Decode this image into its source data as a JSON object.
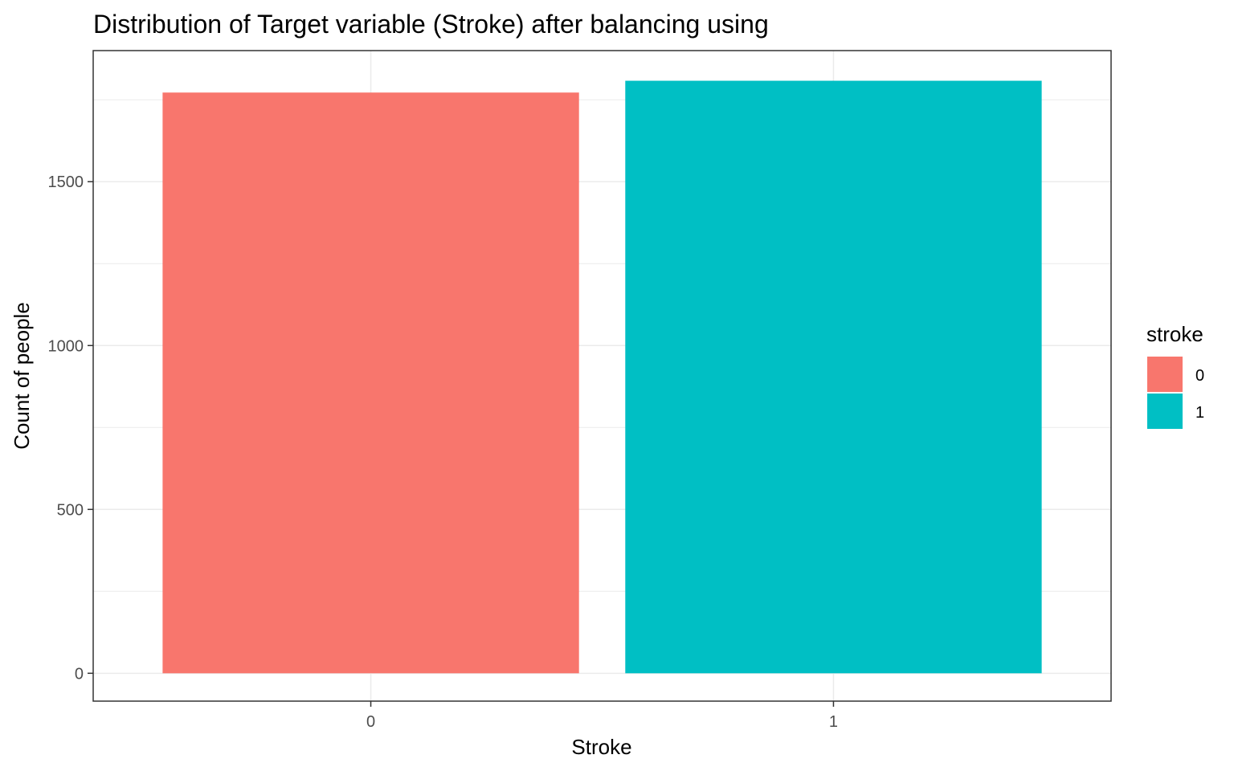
{
  "chart_data": {
    "type": "bar",
    "title": "Distribution of Target variable (Stroke) after balancing using",
    "xlabel": "Stroke",
    "ylabel": "Count of people",
    "categories": [
      "0",
      "1"
    ],
    "values": [
      1772,
      1808
    ],
    "bar_colors": [
      "#F8766D",
      "#00BFC4"
    ],
    "ylim": [
      -85,
      1900
    ],
    "yticks": [
      0,
      500,
      1000,
      1500
    ],
    "ytick_labels": [
      "0",
      "500",
      "1000",
      "1500"
    ],
    "grid": true,
    "legend": {
      "title": "stroke",
      "position": "right",
      "items": [
        {
          "label": "0",
          "color": "#F8766D"
        },
        {
          "label": "1",
          "color": "#00BFC4"
        }
      ]
    }
  }
}
